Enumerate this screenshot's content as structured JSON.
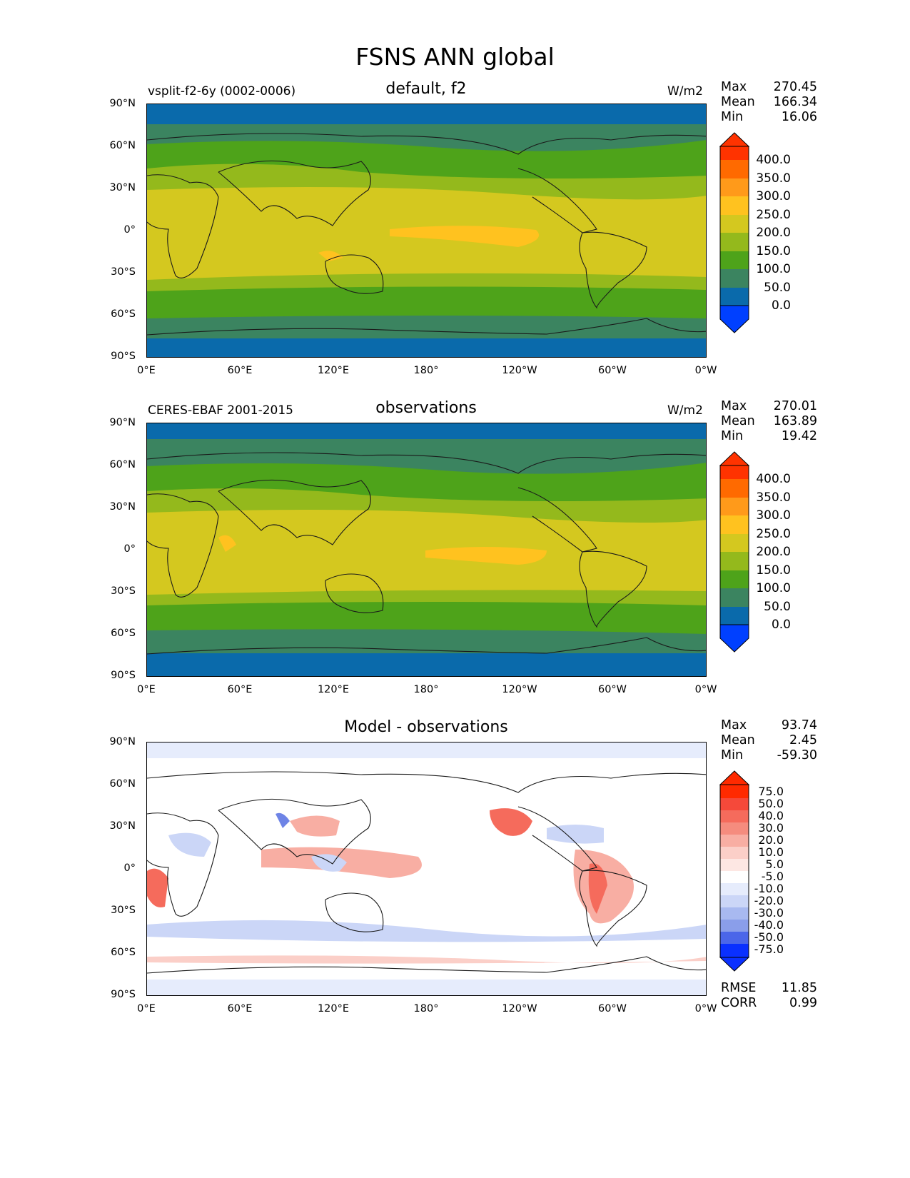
{
  "figure": {
    "title": "FSNS ANN global"
  },
  "axes": {
    "y_ticks": [
      "90°N",
      "60°N",
      "30°N",
      "0°",
      "30°S",
      "60°S",
      "90°S"
    ],
    "x_ticks": [
      "0°E",
      "60°E",
      "120°E",
      "180°",
      "120°W",
      "60°W",
      "0°W"
    ]
  },
  "panels": [
    {
      "title": "default, f2",
      "left_label": "vsplit-f2-6y (0002-0006)",
      "units": "W/m2",
      "stats": {
        "max_label": "Max",
        "max": "270.45",
        "mean_label": "Mean",
        "mean": "166.34",
        "min_label": "Min",
        "min": "16.06"
      },
      "colorbar": {
        "labels": [
          "400.0",
          "350.0",
          "300.0",
          "250.0",
          "200.0",
          "150.0",
          "100.0",
          "50.0",
          "0.0"
        ],
        "colors": [
          "#ff3300",
          "#ff6a00",
          "#ff9a1a",
          "#ffc21f",
          "#d4c81f",
          "#94b91c",
          "#4ea31a",
          "#3b8460",
          "#0a6aab",
          "#0040ff"
        ]
      }
    },
    {
      "title": "observations",
      "left_label": "CERES-EBAF 2001-2015",
      "units": "W/m2",
      "stats": {
        "max_label": "Max",
        "max": "270.01",
        "mean_label": "Mean",
        "mean": "163.89",
        "min_label": "Min",
        "min": "19.42"
      },
      "colorbar": {
        "labels": [
          "400.0",
          "350.0",
          "300.0",
          "250.0",
          "200.0",
          "150.0",
          "100.0",
          "50.0",
          "0.0"
        ],
        "colors": [
          "#ff3300",
          "#ff6a00",
          "#ff9a1a",
          "#ffc21f",
          "#d4c81f",
          "#94b91c",
          "#4ea31a",
          "#3b8460",
          "#0a6aab",
          "#0040ff"
        ]
      }
    },
    {
      "title": "Model - observations",
      "stats": {
        "max_label": "Max",
        "max": "93.74",
        "mean_label": "Mean",
        "mean": "2.45",
        "min_label": "Min",
        "min": "-59.30",
        "rmse_label": "RMSE",
        "rmse": "11.85",
        "corr_label": "CORR",
        "corr": "0.99"
      },
      "colorbar": {
        "labels": [
          "75.0",
          "50.0",
          "40.0",
          "30.0",
          "20.0",
          "10.0",
          "5.0",
          "-5.0",
          "-10.0",
          "-20.0",
          "-30.0",
          "-40.0",
          "-50.0",
          "-75.0"
        ],
        "colors": [
          "#ff2a00",
          "#f5493a",
          "#f56b5c",
          "#f58c7e",
          "#f8aea3",
          "#fbcfc8",
          "#fde7e3",
          "#ffffff",
          "#e6ecfc",
          "#cbd6f7",
          "#a8b9f0",
          "#8a9eea",
          "#6e84e6",
          "#4b66e9",
          "#0a30ff"
        ]
      }
    }
  ],
  "chart_data": {
    "type": "heatmap",
    "x_ticks_deg": [
      0,
      60,
      120,
      180,
      240,
      300,
      360
    ],
    "y_ticks_deg": [
      90,
      60,
      30,
      0,
      -30,
      -60,
      -90
    ],
    "xlim": [
      0,
      360
    ],
    "ylim": [
      -90,
      90
    ],
    "panels": [
      {
        "name": "default, f2",
        "units": "W/m2",
        "max": 270.45,
        "mean": 166.34,
        "min": 16.06
      },
      {
        "name": "observations",
        "units": "W/m2",
        "max": 270.01,
        "mean": 163.89,
        "min": 19.42
      },
      {
        "name": "Model - observations",
        "max": 93.74,
        "mean": 2.45,
        "min": -59.3,
        "rmse": 11.85,
        "corr": 0.99
      }
    ]
  }
}
